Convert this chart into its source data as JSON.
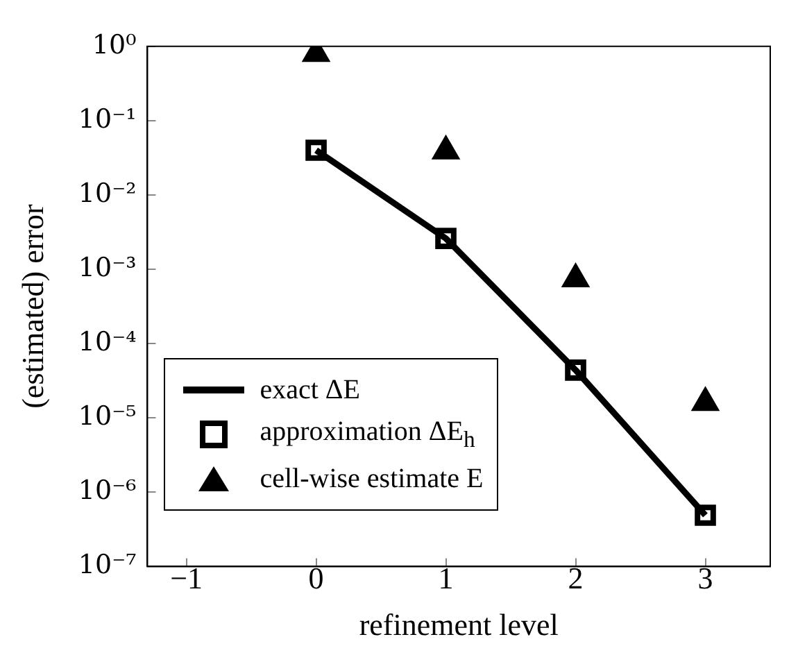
{
  "chart_data": {
    "type": "line",
    "xlabel": "refinement level",
    "ylabel": "(estimated) error",
    "log": "y",
    "xlim": [
      -1.3,
      3.5
    ],
    "xticks": [
      {
        "value": -1,
        "label": "−1"
      },
      0,
      1,
      2,
      3
    ],
    "ylim": [
      1e-07,
      1
    ],
    "yticks": [
      {
        "value": 1e-07,
        "label": "10⁻⁷"
      },
      {
        "value": 1e-06,
        "label": "10⁻⁶"
      },
      {
        "value": 1e-05,
        "label": "10⁻⁵"
      },
      {
        "value": 0.0001,
        "label": "10⁻⁴"
      },
      {
        "value": 0.001,
        "label": "10⁻³"
      },
      {
        "value": 0.01,
        "label": "10⁻²"
      },
      {
        "value": 0.1,
        "label": "10⁻¹"
      },
      {
        "value": 1,
        "label": "10⁰"
      }
    ],
    "grid": false,
    "legend": "bottom left",
    "x": [
      0,
      1,
      2,
      3
    ],
    "series": [
      {
        "name": "exact ΔE",
        "type": "line",
        "marker": "none",
        "line_style": "solid",
        "color": "#000000",
        "values": [
          0.04,
          0.0026,
          4.4e-05,
          4.9e-07
        ]
      },
      {
        "name": "approximation ΔE$_{h}$",
        "type": "scatter",
        "marker": "square",
        "color": "#000000",
        "values": [
          0.04,
          0.0026,
          4.4e-05,
          4.9e-07
        ]
      },
      {
        "name": "cell-wise estimate E",
        "type": "scatter",
        "marker": "triangle",
        "color": "#000000",
        "values": [
          0.8,
          0.039,
          0.00074,
          1.6e-05
        ]
      }
    ]
  }
}
